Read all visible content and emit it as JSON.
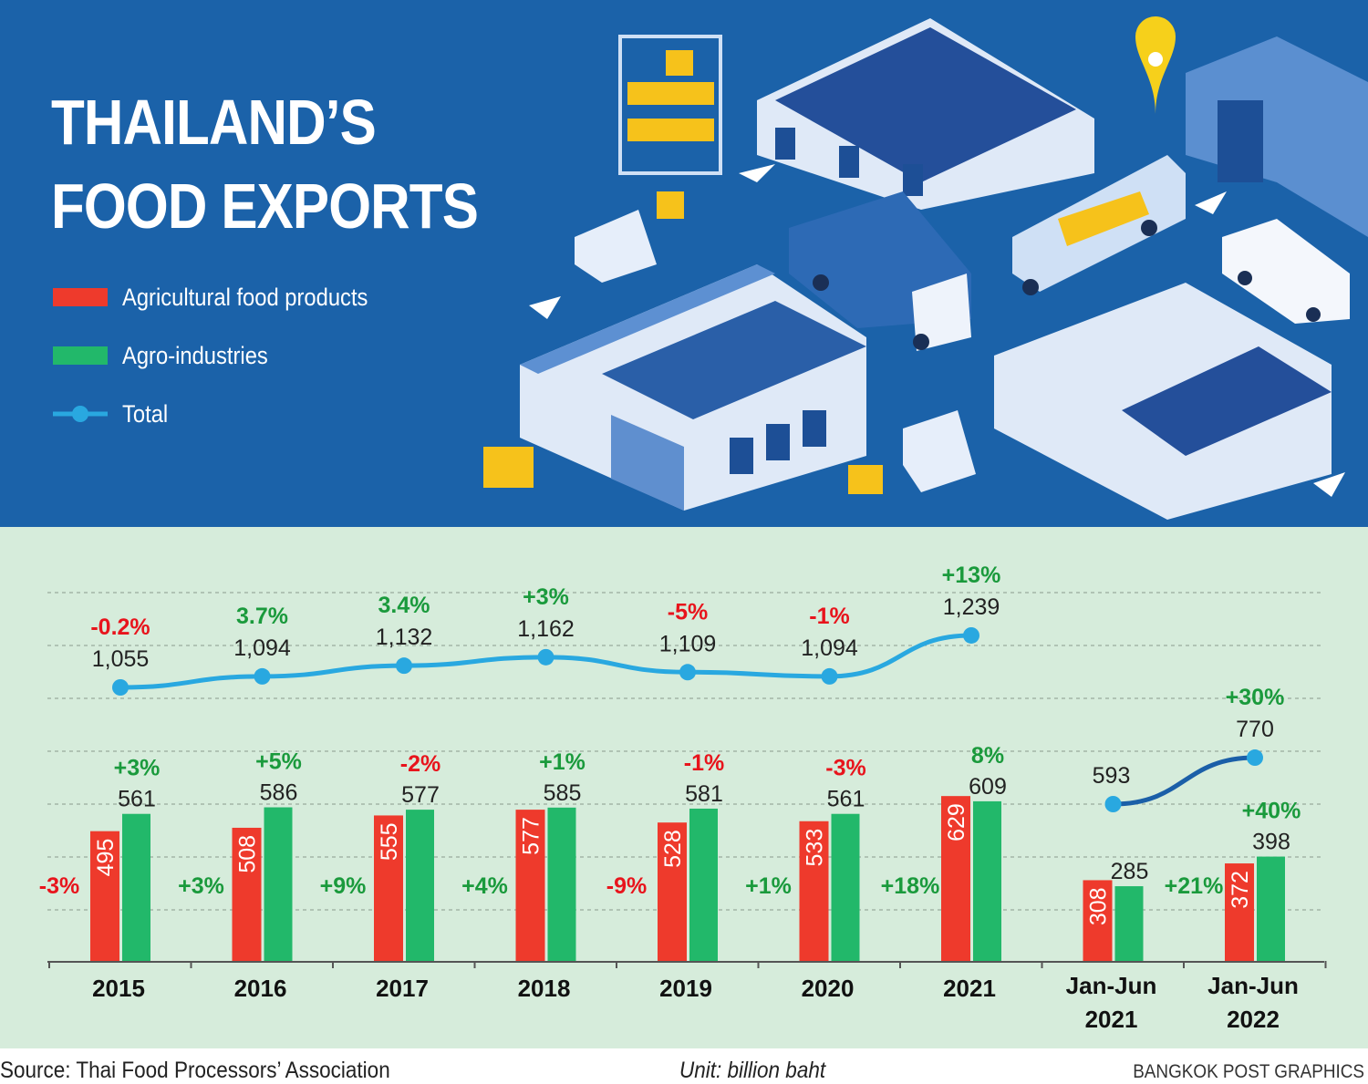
{
  "title_lines": [
    "THAILAND’S",
    "FOOD EXPORTS"
  ],
  "legend": [
    {
      "label": "Agricultural food products",
      "color": "#ee3a2c",
      "kind": "bar"
    },
    {
      "label": "Agro-industries",
      "color": "#22b86a",
      "kind": "bar"
    },
    {
      "label": "Total",
      "color": "#29a8e0",
      "kind": "line"
    }
  ],
  "footer": {
    "source": "Source: Thai Food Processors’ Association",
    "unit": "Unit: billion baht",
    "credit": "BANGKOK POST GRAPHICS"
  },
  "colors": {
    "positive": "#1a9a3c",
    "negative": "#e8141c",
    "half_year_line": "#1b5fa8",
    "banner": "#1b62a9",
    "chart_bg": "#d6ecdb"
  },
  "chart_data": {
    "type": "bar+line",
    "unit": "billion baht",
    "grid": "horizontal dashed",
    "legend_position": "top-left",
    "categories": [
      [
        "2015"
      ],
      [
        "2016"
      ],
      [
        "2017"
      ],
      [
        "2018"
      ],
      [
        "2019"
      ],
      [
        "2020"
      ],
      [
        "2021"
      ],
      [
        "Jan-Jun",
        "2021"
      ],
      [
        "Jan-Jun",
        "2022"
      ]
    ],
    "series": [
      {
        "name": "Agricultural food products",
        "type": "bar",
        "values": [
          495,
          508,
          555,
          577,
          528,
          533,
          629,
          308,
          372
        ],
        "growth": [
          "-3%",
          "+3%",
          "+9%",
          "+4%",
          "-9%",
          "+1%",
          "+18%",
          "",
          "+21%"
        ]
      },
      {
        "name": "Agro-industries",
        "type": "bar",
        "values": [
          561,
          586,
          577,
          585,
          581,
          561,
          609,
          285,
          398
        ],
        "growth": [
          "+3%",
          "+5%",
          "-2%",
          "+1%",
          "-1%",
          "-3%",
          "8%",
          "",
          "+40%"
        ]
      },
      {
        "name": "Total",
        "type": "line",
        "values": [
          1055,
          1094,
          1132,
          1162,
          1109,
          1094,
          1239,
          593,
          770
        ],
        "value_labels": [
          "1,055",
          "1,094",
          "1,132",
          "1,162",
          "1,109",
          "1,094",
          "1,239",
          "593",
          "770"
        ],
        "growth": [
          "-0.2%",
          "3.7%",
          "3.4%",
          "+3%",
          "-5%",
          "-1%",
          "+13%",
          "",
          "+30%"
        ]
      }
    ]
  }
}
